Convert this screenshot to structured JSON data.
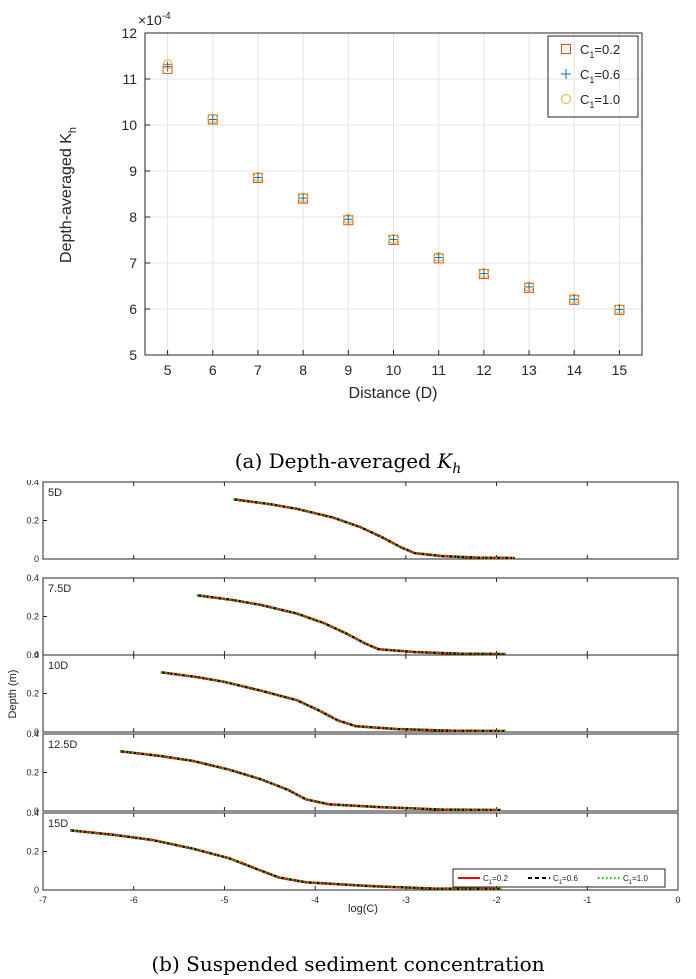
{
  "captions": {
    "a_prefix": "(a) Depth-averaged ",
    "a_symbol": "K",
    "a_sub": "h",
    "b": "(b) Suspended sediment concentration"
  },
  "chart_data": [
    {
      "type": "scatter",
      "xlabel": "Distance (D)",
      "ylabel": "Depth-averaged K",
      "ylabel_sub": "h",
      "multiplier": "×10",
      "multiplier_exp": "-4",
      "xlim": [
        4.5,
        15.5
      ],
      "ylim": [
        5,
        12
      ],
      "x_ticks": [
        "5",
        "6",
        "7",
        "8",
        "9",
        "10",
        "11",
        "12",
        "13",
        "14",
        "15"
      ],
      "y_ticks": [
        "5",
        "6",
        "7",
        "8",
        "9",
        "10",
        "11",
        "12"
      ],
      "grid": true,
      "legend_position": "top-right",
      "x": [
        5,
        6,
        7,
        8,
        9,
        10,
        11,
        12,
        13,
        14,
        15
      ],
      "series": [
        {
          "name": "C",
          "name_sub": "1",
          "name_suffix": "=0.2",
          "marker": "square",
          "color": "#d95319",
          "values": [
            11.22,
            10.12,
            8.85,
            8.4,
            7.93,
            7.5,
            7.1,
            6.76,
            6.46,
            6.2,
            5.98
          ]
        },
        {
          "name": "C",
          "name_sub": "1",
          "name_suffix": "=0.6",
          "marker": "plus",
          "color": "#0072bd",
          "values": [
            11.27,
            10.12,
            8.86,
            8.41,
            7.95,
            7.51,
            7.12,
            6.77,
            6.48,
            6.21,
            5.99
          ]
        },
        {
          "name": "C",
          "name_sub": "1",
          "name_suffix": "=1.0",
          "marker": "circle",
          "color": "#edb120",
          "values": [
            11.32,
            10.14,
            8.87,
            8.42,
            7.96,
            7.52,
            7.13,
            6.78,
            6.49,
            6.22,
            6.0
          ]
        }
      ]
    },
    {
      "type": "line",
      "xlabel": "log(C)",
      "ylabel": "Depth (m)",
      "xlim": [
        -7,
        0
      ],
      "ylim": [
        0,
        0.4
      ],
      "x_ticks": [
        "-7",
        "-6",
        "-5",
        "-4",
        "-3",
        "-2",
        "-1",
        "0"
      ],
      "y_ticks": [
        "0",
        "0.2",
        "0.4"
      ],
      "grid": false,
      "legend_position": "top-right (bottom panel)",
      "legend_entries": [
        {
          "name": "C",
          "sub": "1",
          "suffix": "=0.2",
          "color": "#ff0000",
          "dash": "solid"
        },
        {
          "name": "C",
          "sub": "1",
          "suffix": "=0.6",
          "color": "#000000",
          "dash": "dashed"
        },
        {
          "name": "C",
          "sub": "1",
          "suffix": "=1.0",
          "color": "#00cc00",
          "dash": "dotted"
        }
      ],
      "panels": [
        {
          "label": "5D",
          "points": [
            [
              -4.9,
              0.31
            ],
            [
              -4.5,
              0.285
            ],
            [
              -4.2,
              0.26
            ],
            [
              -3.8,
              0.215
            ],
            [
              -3.5,
              0.165
            ],
            [
              -3.25,
              0.11
            ],
            [
              -3.05,
              0.06
            ],
            [
              -2.9,
              0.03
            ],
            [
              -2.6,
              0.015
            ],
            [
              -2.2,
              0.007
            ],
            [
              -1.8,
              0.005
            ]
          ]
        },
        {
          "label": "7.5D",
          "points": [
            [
              -5.3,
              0.31
            ],
            [
              -4.9,
              0.285
            ],
            [
              -4.6,
              0.26
            ],
            [
              -4.2,
              0.215
            ],
            [
              -3.9,
              0.165
            ],
            [
              -3.65,
              0.11
            ],
            [
              -3.45,
              0.06
            ],
            [
              -3.3,
              0.03
            ],
            [
              -2.9,
              0.015
            ],
            [
              -2.4,
              0.007
            ],
            [
              -1.9,
              0.005
            ]
          ]
        },
        {
          "label": "10D",
          "points": [
            [
              -5.7,
              0.31
            ],
            [
              -5.3,
              0.285
            ],
            [
              -5.0,
              0.26
            ],
            [
              -4.6,
              0.215
            ],
            [
              -4.2,
              0.165
            ],
            [
              -3.95,
              0.11
            ],
            [
              -3.75,
              0.06
            ],
            [
              -3.55,
              0.03
            ],
            [
              -3.1,
              0.015
            ],
            [
              -2.5,
              0.007
            ],
            [
              -1.9,
              0.005
            ]
          ]
        },
        {
          "label": "12.5D",
          "points": [
            [
              -6.15,
              0.31
            ],
            [
              -5.7,
              0.285
            ],
            [
              -5.35,
              0.26
            ],
            [
              -4.95,
              0.215
            ],
            [
              -4.6,
              0.165
            ],
            [
              -4.3,
              0.11
            ],
            [
              -4.1,
              0.06
            ],
            [
              -3.85,
              0.035
            ],
            [
              -3.3,
              0.02
            ],
            [
              -2.6,
              0.008
            ],
            [
              -1.95,
              0.005
            ]
          ]
        },
        {
          "label": "15D",
          "points": [
            [
              -6.7,
              0.31
            ],
            [
              -6.2,
              0.285
            ],
            [
              -5.8,
              0.26
            ],
            [
              -5.35,
              0.215
            ],
            [
              -4.95,
              0.165
            ],
            [
              -4.65,
              0.11
            ],
            [
              -4.4,
              0.065
            ],
            [
              -4.1,
              0.04
            ],
            [
              -3.4,
              0.02
            ],
            [
              -2.7,
              0.008
            ],
            [
              -1.95,
              0.005
            ]
          ]
        }
      ]
    }
  ]
}
